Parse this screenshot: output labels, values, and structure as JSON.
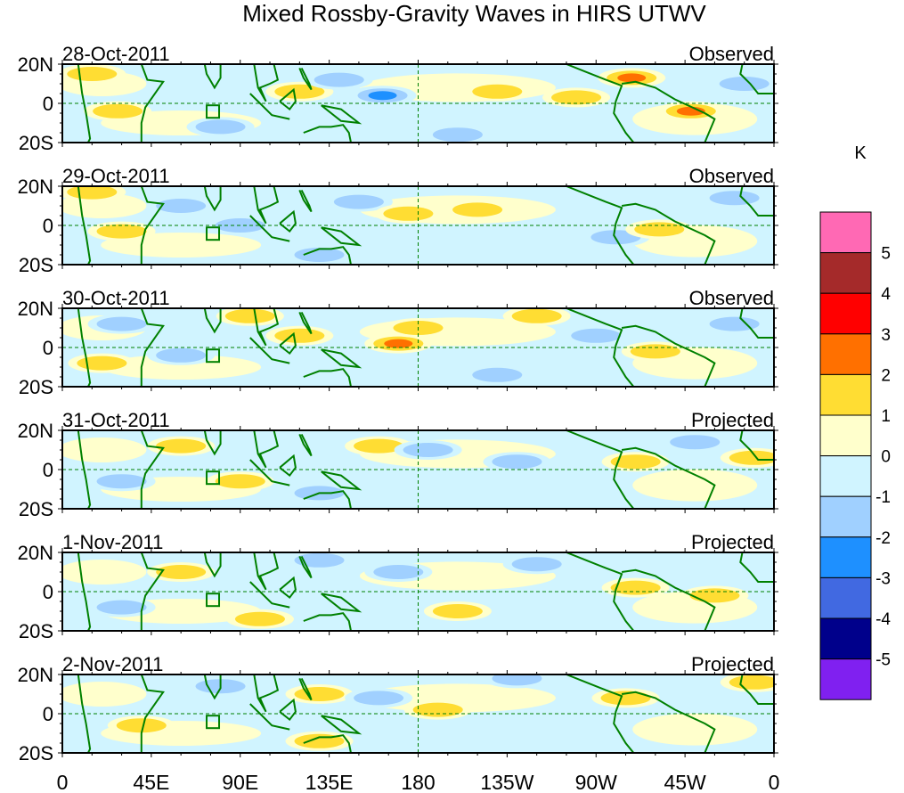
{
  "chart_data": {
    "type": "heatmap",
    "title": "Mixed Rossby-Gravity Waves in HIRS UTWV",
    "units": "K",
    "xlabel": "",
    "ylabel": "",
    "x_ticks": [
      "0",
      "45E",
      "90E",
      "135E",
      "180",
      "135W",
      "90W",
      "45W",
      "0"
    ],
    "y_ticks": [
      "20N",
      "0",
      "20S"
    ],
    "xlim": [
      0,
      360
    ],
    "ylim": [
      -20,
      20
    ],
    "panels": [
      {
        "date": "28-Oct-2011",
        "status": "Observed"
      },
      {
        "date": "29-Oct-2011",
        "status": "Observed"
      },
      {
        "date": "30-Oct-2011",
        "status": "Observed"
      },
      {
        "date": "31-Oct-2011",
        "status": "Projected"
      },
      {
        "date": "1-Nov-2011",
        "status": "Projected"
      },
      {
        "date": "2-Nov-2011",
        "status": "Projected"
      }
    ],
    "colorbar": {
      "label": "K",
      "levels": [
        5,
        4,
        3,
        2,
        1,
        0,
        -1,
        -2,
        -3,
        -4,
        -5
      ],
      "colors": [
        "#ff69b4",
        "#a52a2a",
        "#ff0000",
        "#ff7000",
        "#ffdd33",
        "#ffffcc",
        "#d0f4ff",
        "#a0d0ff",
        "#1e90ff",
        "#4169e1",
        "#00008b",
        "#8020f0"
      ]
    },
    "anomaly_blobs": [
      [
        {
          "lon": 120,
          "lat": 6,
          "v": 1.5
        },
        {
          "lon": 162,
          "lat": 4,
          "v": -2.5
        },
        {
          "lon": 140,
          "lat": 12,
          "v": -1.5
        },
        {
          "lon": 288,
          "lat": 13,
          "v": 2.5
        },
        {
          "lon": 318,
          "lat": -4,
          "v": 2.5
        },
        {
          "lon": 260,
          "lat": 3,
          "v": 1.5
        },
        {
          "lon": 28,
          "lat": -4,
          "v": 1.5
        },
        {
          "lon": 15,
          "lat": 15,
          "v": 1.2
        },
        {
          "lon": 220,
          "lat": 6,
          "v": 1.2
        },
        {
          "lon": 80,
          "lat": -12,
          "v": -1.2
        },
        {
          "lon": 200,
          "lat": -16,
          "v": -1.2
        },
        {
          "lon": 345,
          "lat": 10,
          "v": -1.2
        }
      ],
      [
        {
          "lon": 30,
          "lat": -3,
          "v": 1.5
        },
        {
          "lon": 150,
          "lat": 12,
          "v": -1.3
        },
        {
          "lon": 175,
          "lat": 6,
          "v": 1.5
        },
        {
          "lon": 210,
          "lat": 8,
          "v": 1.2
        },
        {
          "lon": 280,
          "lat": -6,
          "v": -1.5
        },
        {
          "lon": 302,
          "lat": -2,
          "v": 1.3
        },
        {
          "lon": 90,
          "lat": 0,
          "v": -1.3
        },
        {
          "lon": 60,
          "lat": 10,
          "v": -1.2
        },
        {
          "lon": 340,
          "lat": 14,
          "v": -1.2
        },
        {
          "lon": 15,
          "lat": 17,
          "v": 1.2
        },
        {
          "lon": 130,
          "lat": -15,
          "v": -1.2
        }
      ],
      [
        {
          "lon": 170,
          "lat": 2,
          "v": 2.5
        },
        {
          "lon": 180,
          "lat": 10,
          "v": 1.5
        },
        {
          "lon": 120,
          "lat": 6,
          "v": 1.5
        },
        {
          "lon": 95,
          "lat": 16,
          "v": 1.3
        },
        {
          "lon": 30,
          "lat": 12,
          "v": -1.3
        },
        {
          "lon": 20,
          "lat": -8,
          "v": 1.3
        },
        {
          "lon": 270,
          "lat": 6,
          "v": -1.5
        },
        {
          "lon": 300,
          "lat": -2,
          "v": 1.3
        },
        {
          "lon": 220,
          "lat": -14,
          "v": -1.3
        },
        {
          "lon": 60,
          "lat": -4,
          "v": -1.2
        },
        {
          "lon": 340,
          "lat": 12,
          "v": -1.2
        },
        {
          "lon": 240,
          "lat": 16,
          "v": 1.2
        }
      ],
      [
        {
          "lon": 160,
          "lat": 12,
          "v": 1.8
        },
        {
          "lon": 185,
          "lat": 10,
          "v": -1.3
        },
        {
          "lon": 230,
          "lat": 4,
          "v": -1.3
        },
        {
          "lon": 290,
          "lat": 4,
          "v": 1.3
        },
        {
          "lon": 60,
          "lat": 12,
          "v": 1.2
        },
        {
          "lon": 30,
          "lat": -6,
          "v": -1.2
        },
        {
          "lon": 130,
          "lat": -12,
          "v": -1.2
        },
        {
          "lon": 320,
          "lat": 14,
          "v": -1.2
        },
        {
          "lon": 350,
          "lat": 6,
          "v": 1.3
        },
        {
          "lon": 90,
          "lat": -6,
          "v": 1.2
        }
      ],
      [
        {
          "lon": 290,
          "lat": 2,
          "v": 1.5
        },
        {
          "lon": 330,
          "lat": -2,
          "v": 1.3
        },
        {
          "lon": 170,
          "lat": 10,
          "v": -1.3
        },
        {
          "lon": 200,
          "lat": -10,
          "v": 1.3
        },
        {
          "lon": 60,
          "lat": 10,
          "v": 1.2
        },
        {
          "lon": 130,
          "lat": 16,
          "v": -1.2
        },
        {
          "lon": 30,
          "lat": -8,
          "v": -1.2
        },
        {
          "lon": 240,
          "lat": 14,
          "v": -1.2
        },
        {
          "lon": 100,
          "lat": -14,
          "v": 1.2
        }
      ],
      [
        {
          "lon": 285,
          "lat": 8,
          "v": 1.5
        },
        {
          "lon": 190,
          "lat": 2,
          "v": 1.3
        },
        {
          "lon": 130,
          "lat": 10,
          "v": 1.2
        },
        {
          "lon": 160,
          "lat": 8,
          "v": -1.3
        },
        {
          "lon": 80,
          "lat": 14,
          "v": -1.3
        },
        {
          "lon": 40,
          "lat": -6,
          "v": 1.2
        },
        {
          "lon": 230,
          "lat": 18,
          "v": -1.2
        },
        {
          "lon": 130,
          "lat": -14,
          "v": 1.3
        },
        {
          "lon": 350,
          "lat": 16,
          "v": 1.3
        }
      ]
    ]
  }
}
